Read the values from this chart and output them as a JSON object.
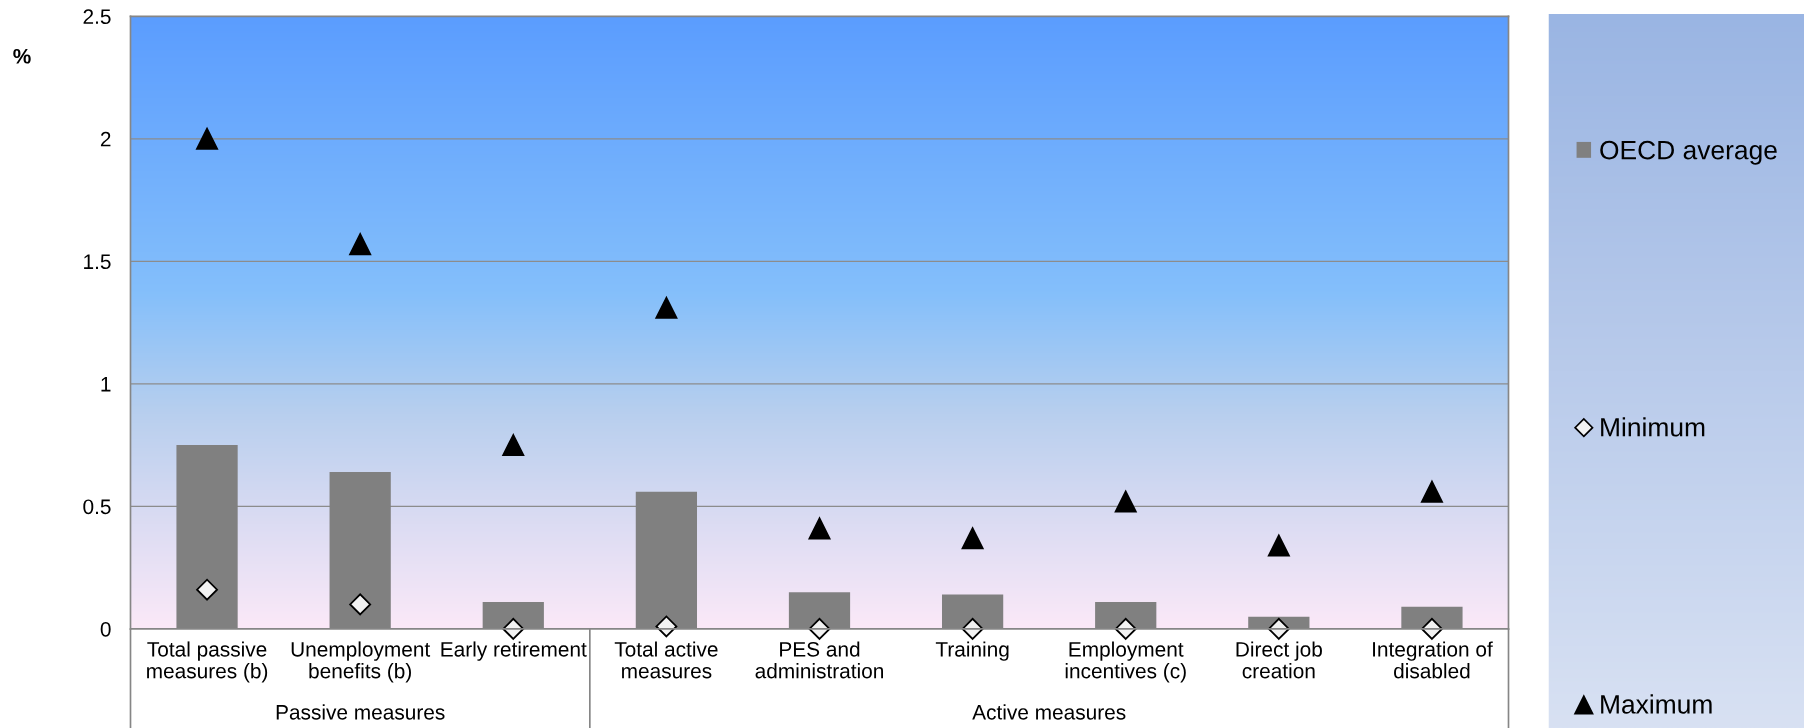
{
  "chart_data": {
    "type": "bar",
    "categories": [
      "Total passive measures (b)",
      "Unemployment benefits (b)",
      "Early retirement",
      "Total active measures",
      "PES and administration",
      "Training",
      "Employment incentives (c)",
      "Direct job creation",
      "Integration of disabled"
    ],
    "series": [
      {
        "name": "OECD average",
        "color": "#808080",
        "values": [
          0.75,
          0.64,
          0.11,
          0.56,
          0.15,
          0.14,
          0.11,
          0.05,
          0.09
        ]
      },
      {
        "name": "Minimum",
        "type": "scatter",
        "marker": "diamond",
        "color": "#f2f2f2",
        "values": [
          0.16,
          0.1,
          0,
          0.01,
          0,
          0,
          0,
          0,
          0
        ]
      },
      {
        "name": "Maximum",
        "type": "scatter",
        "marker": "triangle",
        "color": "#000000",
        "values": [
          2.0,
          1.57,
          0.75,
          1.31,
          0.41,
          0.37,
          0.52,
          0.34,
          0.56
        ]
      }
    ],
    "ylabel": "%",
    "ylim": [
      0,
      2.5
    ],
    "yticks": [
      0,
      0.5,
      1,
      1.5,
      2,
      2.5
    ],
    "grid": "y",
    "legend": "right",
    "annotations": [
      "Passive measures",
      "Active measures"
    ]
  }
}
